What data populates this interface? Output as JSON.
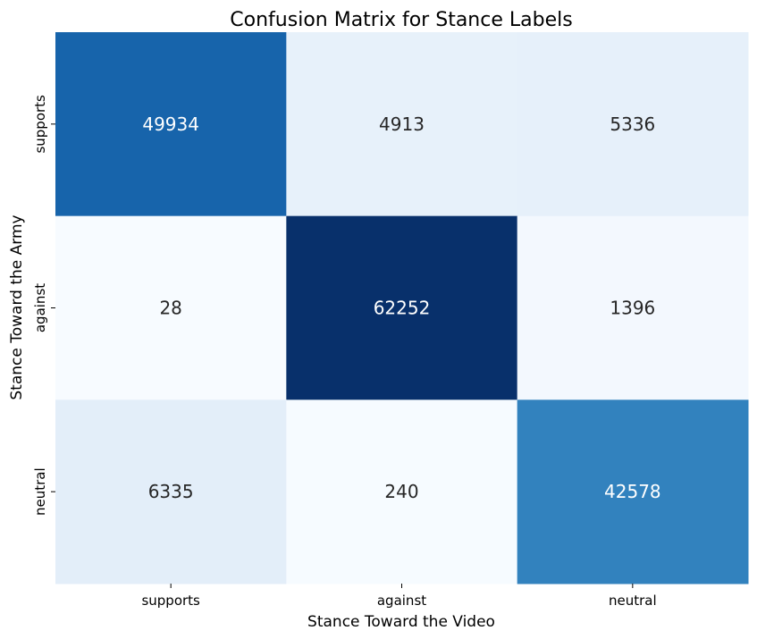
{
  "chart_data": {
    "type": "heatmap",
    "title": "Confusion Matrix for Stance Labels",
    "xlabel": "Stance Toward the Video",
    "ylabel": "Stance Toward the Army",
    "x_categories": [
      "supports",
      "against",
      "neutral"
    ],
    "y_categories": [
      "supports",
      "against",
      "neutral"
    ],
    "values": [
      [
        49934,
        4913,
        5336
      ],
      [
        28,
        62252,
        1396
      ],
      [
        6335,
        240,
        42578
      ]
    ],
    "colormap": "Blues",
    "colorbar": false,
    "grid": false,
    "legend": "none",
    "colors": {
      "min": "#f7fbff",
      "max": "#08306b",
      "text_dark": "#262626",
      "text_light": "#ffffff"
    }
  }
}
